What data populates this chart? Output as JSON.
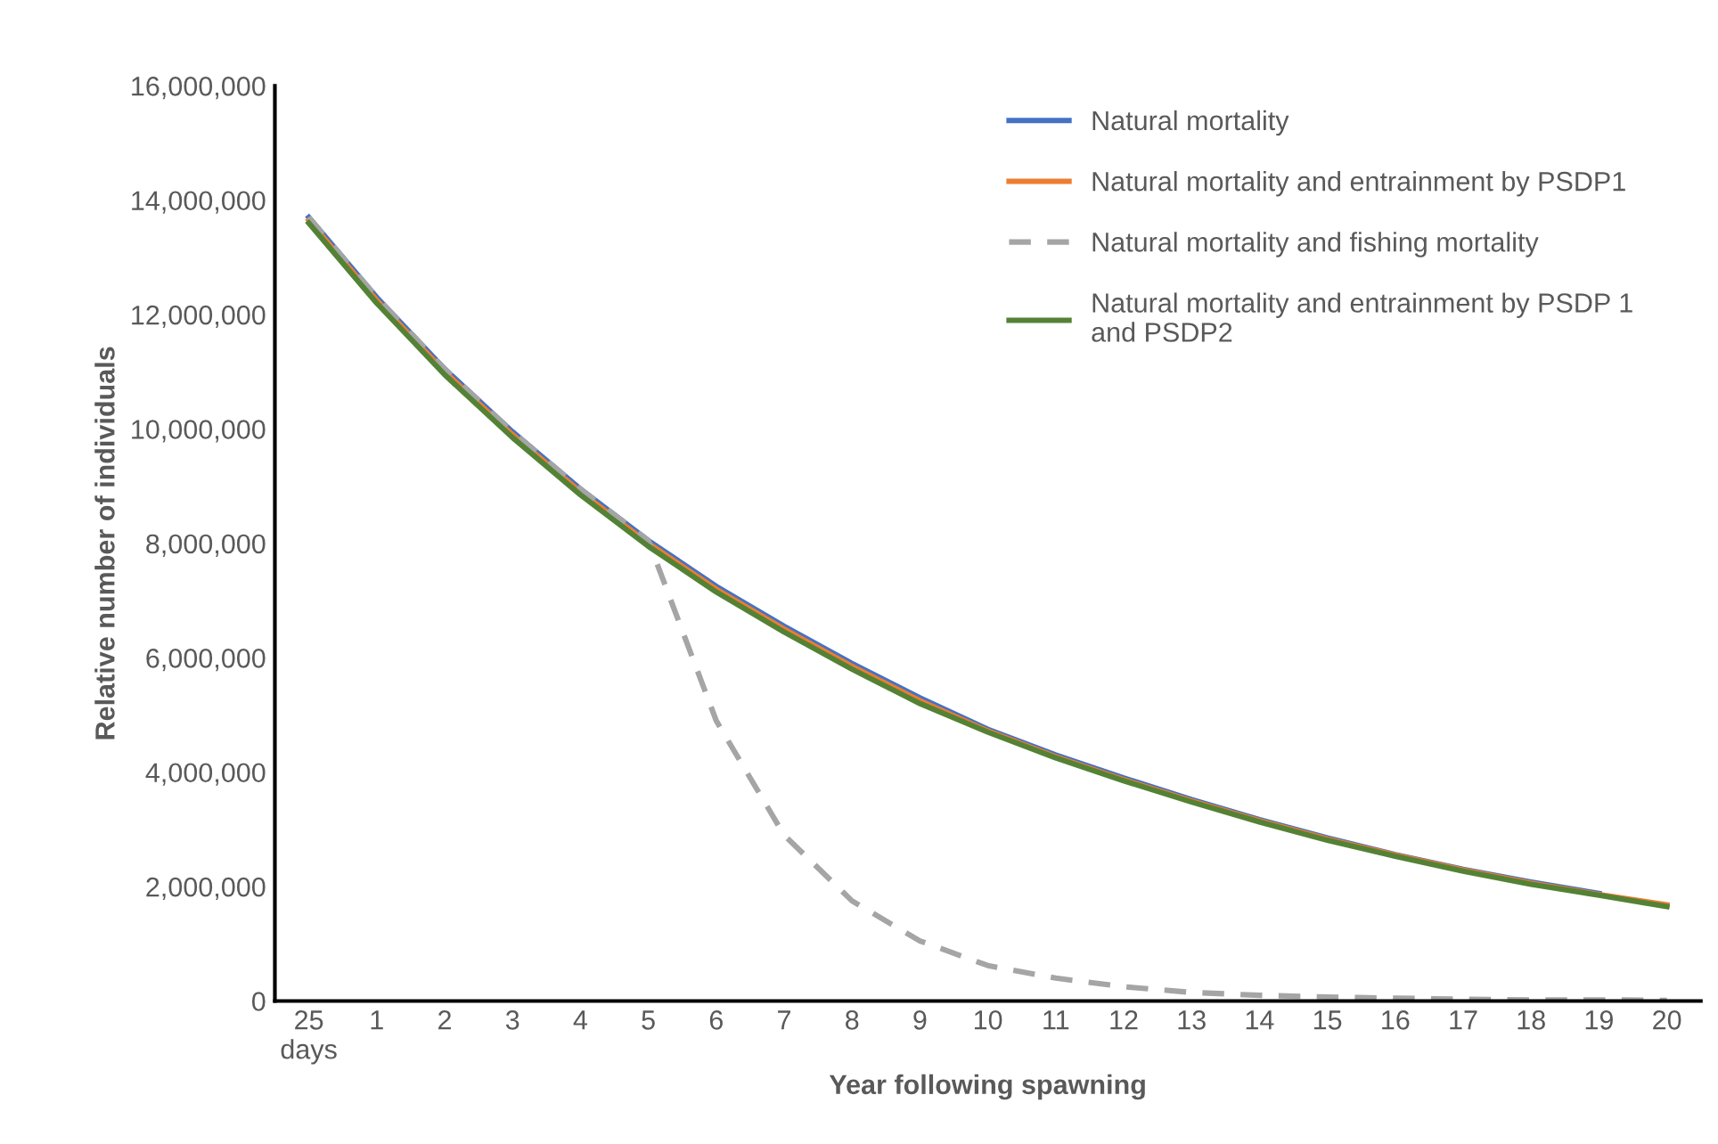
{
  "chart_data": {
    "type": "line",
    "xlabel": "Year following spawning",
    "ylabel": "Relative number of individuals",
    "categories": [
      "25\ndays",
      "1",
      "2",
      "3",
      "4",
      "5",
      "6",
      "7",
      "8",
      "9",
      "10",
      "11",
      "12",
      "13",
      "14",
      "15",
      "16",
      "17",
      "18",
      "19",
      "20"
    ],
    "series": [
      {
        "name": "Natural mortality",
        "color": "#4472c4",
        "line_style": "solid",
        "values": [
          13700000,
          12300000,
          11050000,
          9950000,
          8950000,
          8050000,
          7250000,
          6550000,
          5900000,
          5300000,
          4750000,
          4300000,
          3900000,
          3520000,
          3170000,
          2850000,
          2560000,
          2300000,
          2080000,
          1880000,
          null
        ]
      },
      {
        "name": "Natural mortality and entrainment by PSDP1",
        "color": "#ed7d31",
        "line_style": "solid",
        "values": [
          13650000,
          12250000,
          11000000,
          9900000,
          8900000,
          8000000,
          7200000,
          6500000,
          5850000,
          5250000,
          4720000,
          4270000,
          3870000,
          3500000,
          3150000,
          2830000,
          2550000,
          2290000,
          2060000,
          1860000,
          1680000
        ]
      },
      {
        "name": "Natural mortality and fishing mortality",
        "color": "#a5a5a5",
        "line_style": "dashed",
        "values": [
          13700000,
          12300000,
          11050000,
          9950000,
          8950000,
          8050000,
          4900000,
          2900000,
          1750000,
          1050000,
          620000,
          400000,
          250000,
          150000,
          100000,
          70000,
          50000,
          30000,
          20000,
          20000,
          10000
        ]
      },
      {
        "name": "Natural mortality and entrainment by PSDP 1\nand PSDP2",
        "color": "#548235",
        "line_style": "solid",
        "values": [
          13600000,
          12200000,
          10950000,
          9850000,
          8850000,
          7950000,
          7150000,
          6450000,
          5800000,
          5200000,
          4700000,
          4250000,
          3850000,
          3480000,
          3130000,
          2810000,
          2530000,
          2270000,
          2040000,
          1850000,
          1650000
        ]
      }
    ],
    "ylim": [
      0,
      16000000
    ],
    "yticks": [
      0,
      {
        "value": 2000000,
        "label": "2,000,000"
      },
      {
        "value": 4000000,
        "label": "4,000,000"
      },
      {
        "value": 6000000,
        "label": "6,000,000"
      },
      {
        "value": 8000000,
        "label": "8,000,000"
      },
      {
        "value": 10000000,
        "label": "10,000,000"
      },
      {
        "value": 12000000,
        "label": "12,000,000"
      },
      {
        "value": 14000000,
        "label": "14,000,000"
      },
      {
        "value": 16000000,
        "label": "16,000,000"
      }
    ],
    "grid": false,
    "legend": "top right",
    "marker": "none"
  }
}
